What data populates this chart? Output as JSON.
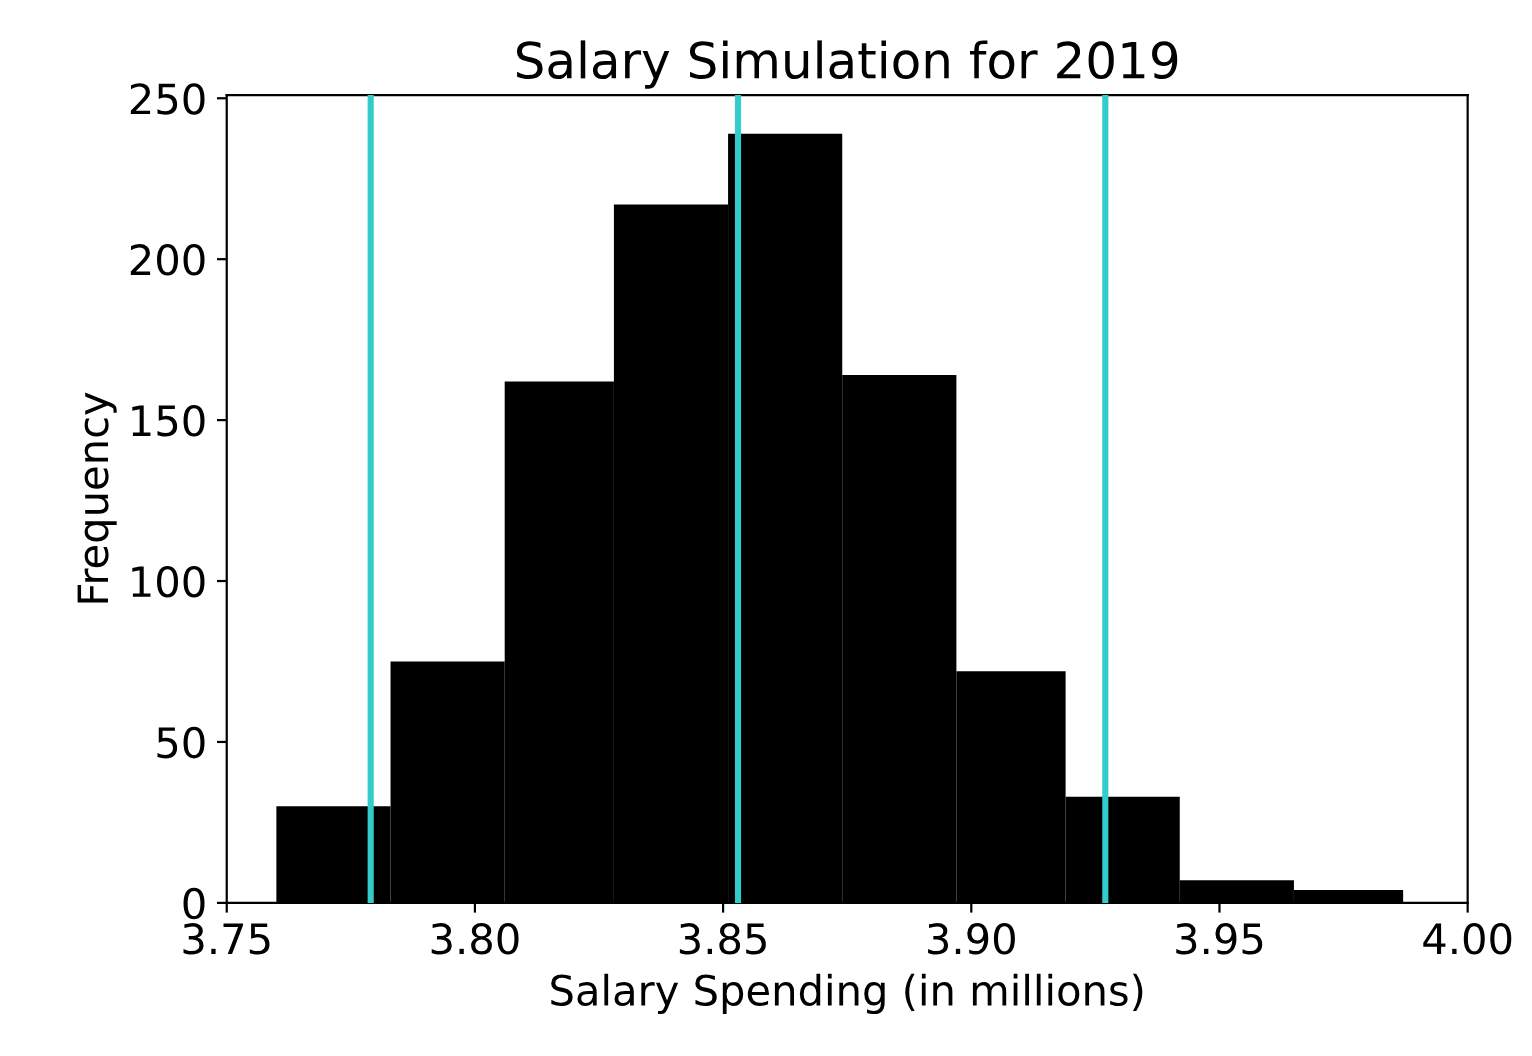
{
  "chart_data": {
    "type": "histogram",
    "title": "Salary Simulation for 2019",
    "xlabel": "Salary Spending (in millions)",
    "ylabel": "Frequency",
    "bins": [
      3.76,
      3.783,
      3.806,
      3.828,
      3.851,
      3.874,
      3.897,
      3.919,
      3.942,
      3.965,
      3.987
    ],
    "values": [
      30,
      75,
      162,
      217,
      239,
      164,
      72,
      33,
      7,
      4
    ],
    "color": "#000000",
    "xlim": [
      3.75,
      4.0
    ],
    "xticks": [
      {
        "value": 3.75,
        "label": "3.75"
      },
      {
        "value": 3.8,
        "label": "3.80"
      },
      {
        "value": 3.85,
        "label": "3.85"
      },
      {
        "value": 3.9,
        "label": "3.90"
      },
      {
        "value": 3.95,
        "label": "3.95"
      },
      {
        "value": 4.0,
        "label": "4.00"
      }
    ],
    "ylim": [
      0,
      251
    ],
    "yticks": [
      0,
      50,
      100,
      150,
      200,
      250
    ],
    "grid": false,
    "legend": false,
    "ref_lines": [
      {
        "axis": "x",
        "value": 3.779,
        "color": "#33cccc"
      },
      {
        "axis": "x",
        "value": 3.853,
        "color": "#33cccc"
      },
      {
        "axis": "x",
        "value": 3.927,
        "color": "#33cccc"
      }
    ]
  }
}
